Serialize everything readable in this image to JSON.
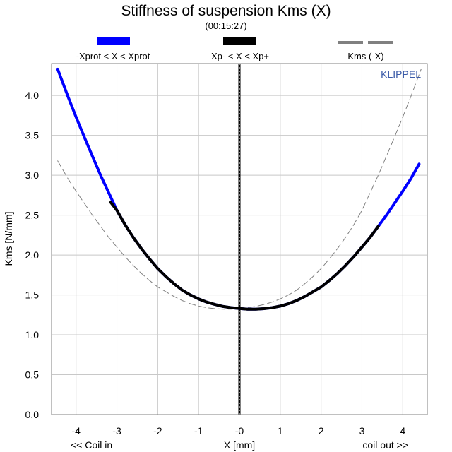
{
  "chart_data": {
    "type": "line",
    "title": "Stiffness of suspension Kms (X)",
    "subtitle": "(00:15:27)",
    "xlabel": "X [mm]",
    "ylabel": "Kms [N/mm]",
    "xlabel_left": "<< Coil in",
    "xlabel_right": "coil out >>",
    "watermark": "KLIPPEL",
    "xlim": [
      -4.6,
      4.6
    ],
    "ylim": [
      0.0,
      4.4
    ],
    "xticks": [
      -4,
      -3,
      -2,
      -1,
      0,
      1,
      2,
      3,
      4
    ],
    "xtick_labels": [
      "-4",
      "-3",
      "-2",
      "-1",
      "-0",
      "1",
      "2",
      "3",
      "4"
    ],
    "yticks": [
      0.0,
      0.5,
      1.0,
      1.5,
      2.0,
      2.5,
      3.0,
      3.5,
      4.0
    ],
    "ytick_labels": [
      "0.0",
      "0.5",
      "1.0",
      "1.5",
      "2.0",
      "2.5",
      "3.0",
      "3.5",
      "4.0"
    ],
    "grid": true,
    "legend_position": "top",
    "legend": [
      {
        "label": "-Xprot < X < Xprot",
        "color": "#0000ff",
        "style": "solid"
      },
      {
        "label": "Xp- < X < Xp+",
        "color": "#000000",
        "style": "solid"
      },
      {
        "label": "Kms (-X)",
        "color": "#808080",
        "style": "dashed"
      }
    ],
    "vline_x": 0,
    "series": [
      {
        "name": "-Xprot < X < Xprot",
        "color": "#0000ff",
        "style": "solid",
        "x": [
          -4.45,
          -4.2,
          -4.0,
          -3.8,
          -3.6,
          -3.4,
          -3.2,
          -3.0,
          -2.8,
          -2.6,
          -2.4,
          -2.2,
          -2.0,
          -1.8,
          -1.6,
          -1.4,
          -1.2,
          -1.0,
          -0.8,
          -0.6,
          -0.4,
          -0.2,
          0.0,
          0.2,
          0.4,
          0.6,
          0.8,
          1.0,
          1.2,
          1.4,
          1.6,
          1.8,
          2.0,
          2.2,
          2.4,
          2.6,
          2.8,
          3.0,
          3.2,
          3.4,
          3.6,
          3.8,
          4.0,
          4.2,
          4.4
        ],
        "values": [
          4.33,
          3.99,
          3.73,
          3.48,
          3.24,
          3.0,
          2.78,
          2.56,
          2.38,
          2.22,
          2.08,
          1.95,
          1.83,
          1.73,
          1.64,
          1.56,
          1.5,
          1.45,
          1.41,
          1.38,
          1.355,
          1.34,
          1.33,
          1.322,
          1.322,
          1.328,
          1.34,
          1.36,
          1.39,
          1.43,
          1.48,
          1.54,
          1.6,
          1.68,
          1.77,
          1.87,
          1.98,
          2.1,
          2.22,
          2.36,
          2.5,
          2.65,
          2.8,
          2.96,
          3.14
        ]
      },
      {
        "name": "Xp- < X < Xp+",
        "color": "#000000",
        "style": "solid",
        "x": [
          -3.15,
          -3.0,
          -2.8,
          -2.6,
          -2.4,
          -2.2,
          -2.0,
          -1.8,
          -1.6,
          -1.4,
          -1.2,
          -1.0,
          -0.8,
          -0.6,
          -0.4,
          -0.2,
          0.0,
          0.2,
          0.4,
          0.6,
          0.8,
          1.0,
          1.2,
          1.4,
          1.6,
          1.8,
          2.0,
          2.2,
          2.4,
          2.6,
          2.8,
          3.0,
          3.2,
          3.4
        ],
        "values": [
          2.66,
          2.56,
          2.38,
          2.22,
          2.08,
          1.95,
          1.83,
          1.73,
          1.64,
          1.56,
          1.5,
          1.45,
          1.41,
          1.38,
          1.355,
          1.34,
          1.33,
          1.322,
          1.322,
          1.328,
          1.34,
          1.36,
          1.39,
          1.43,
          1.48,
          1.54,
          1.6,
          1.68,
          1.77,
          1.87,
          1.98,
          2.1,
          2.22,
          2.36
        ]
      },
      {
        "name": "Kms (-X)",
        "color": "#808080",
        "style": "dashed",
        "x": [
          -4.45,
          -4.2,
          -4.0,
          -3.8,
          -3.6,
          -3.4,
          -3.2,
          -3.0,
          -2.8,
          -2.6,
          -2.4,
          -2.2,
          -2.0,
          -1.8,
          -1.6,
          -1.4,
          -1.2,
          -1.0,
          -0.8,
          -0.6,
          -0.4,
          -0.2,
          0.0,
          0.2,
          0.4,
          0.6,
          0.8,
          1.0,
          1.2,
          1.4,
          1.6,
          1.8,
          2.0,
          2.2,
          2.4,
          2.6,
          2.8,
          3.0,
          3.2,
          3.4,
          3.6,
          3.8,
          4.0,
          4.2,
          4.45
        ],
        "values": [
          3.18,
          2.96,
          2.8,
          2.65,
          2.5,
          2.36,
          2.22,
          2.1,
          1.98,
          1.87,
          1.77,
          1.68,
          1.6,
          1.54,
          1.48,
          1.43,
          1.39,
          1.36,
          1.34,
          1.328,
          1.322,
          1.322,
          1.33,
          1.34,
          1.355,
          1.38,
          1.41,
          1.45,
          1.5,
          1.56,
          1.64,
          1.73,
          1.83,
          1.95,
          2.08,
          2.22,
          2.38,
          2.56,
          2.78,
          3.0,
          3.24,
          3.48,
          3.73,
          3.99,
          4.33
        ]
      }
    ]
  }
}
